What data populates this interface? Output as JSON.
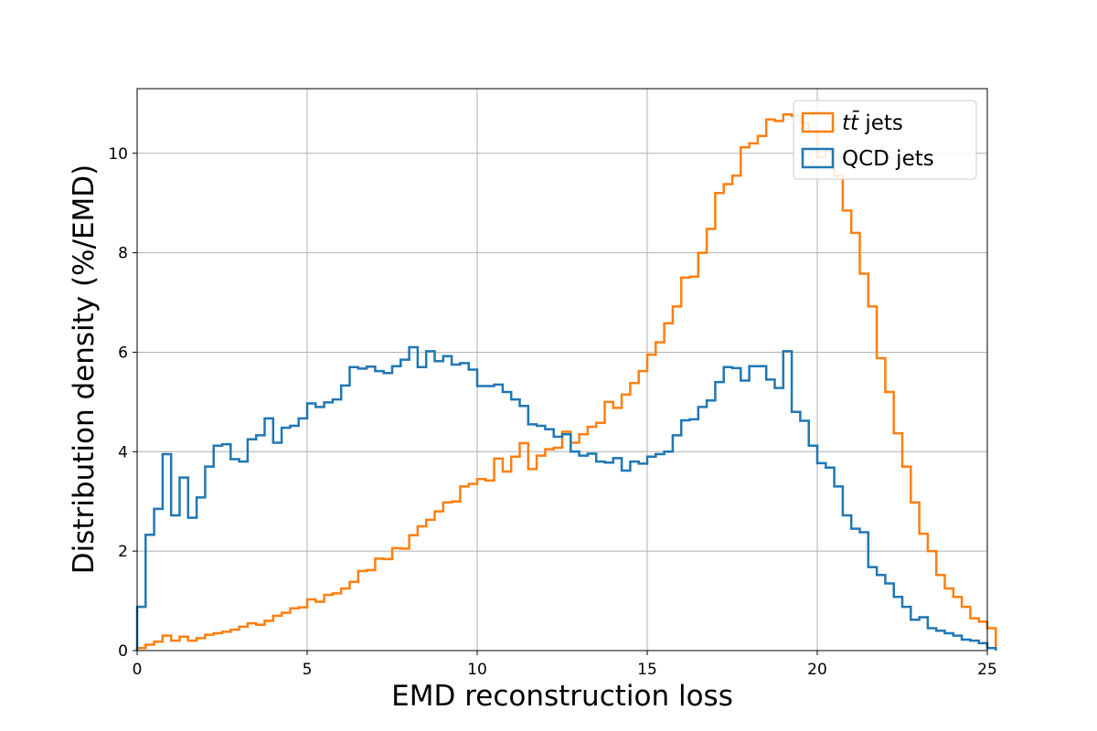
{
  "chart_data": {
    "type": "histogram-step",
    "title": "",
    "xlabel": "EMD reconstruction loss",
    "ylabel": "Distribution density (%/EMD)",
    "xlim": [
      0,
      25
    ],
    "ylim": [
      0,
      11.3
    ],
    "xticks": [
      0,
      5,
      10,
      15,
      20,
      25
    ],
    "yticks": [
      0,
      2,
      4,
      6,
      8,
      10
    ],
    "grid": true,
    "legend_position": "top-right",
    "bin_width": 0.25,
    "series": [
      {
        "name": "tt̄ jets",
        "legend_main": "tt̄",
        "legend_suffix": " jets",
        "color": "#ff7f0e",
        "values": [
          0.05,
          0.12,
          0.18,
          0.3,
          0.2,
          0.28,
          0.2,
          0.25,
          0.32,
          0.35,
          0.38,
          0.42,
          0.48,
          0.55,
          0.52,
          0.6,
          0.7,
          0.76,
          0.85,
          0.87,
          1.03,
          0.98,
          1.12,
          1.15,
          1.25,
          1.38,
          1.6,
          1.62,
          1.85,
          1.84,
          2.06,
          2.05,
          2.32,
          2.5,
          2.63,
          2.8,
          2.98,
          3.0,
          3.3,
          3.35,
          3.45,
          3.42,
          3.86,
          3.6,
          3.9,
          4.17,
          3.65,
          3.92,
          4.05,
          4.08,
          4.4,
          4.18,
          4.35,
          4.5,
          4.58,
          5.0,
          4.88,
          5.15,
          5.38,
          5.62,
          5.95,
          6.2,
          6.58,
          6.92,
          7.5,
          7.52,
          8.0,
          8.48,
          9.2,
          9.38,
          9.55,
          10.12,
          10.2,
          10.35,
          10.68,
          10.65,
          10.78,
          10.75,
          10.6,
          10.45,
          9.92,
          10.05,
          9.55,
          8.85,
          8.4,
          7.58,
          6.92,
          5.88,
          5.2,
          4.37,
          3.7,
          2.98,
          2.35,
          2.0,
          1.52,
          1.25,
          1.08,
          0.88,
          0.65,
          0.58,
          0.45
        ]
      },
      {
        "name": "QCD jets",
        "color": "#1f77b4",
        "values": [
          0.88,
          2.33,
          2.85,
          3.95,
          2.72,
          3.48,
          2.67,
          3.08,
          3.7,
          4.12,
          4.15,
          3.85,
          3.8,
          4.25,
          4.33,
          4.67,
          4.18,
          4.48,
          4.52,
          4.67,
          4.97,
          4.9,
          4.99,
          5.05,
          5.33,
          5.7,
          5.67,
          5.71,
          5.62,
          5.58,
          5.72,
          5.85,
          6.1,
          5.7,
          6.02,
          5.82,
          5.92,
          5.75,
          5.78,
          5.65,
          5.32,
          5.32,
          5.35,
          5.2,
          5.05,
          4.92,
          4.55,
          4.52,
          4.45,
          4.3,
          4.35,
          4.0,
          3.92,
          3.96,
          3.8,
          3.78,
          3.87,
          3.62,
          3.8,
          3.76,
          3.9,
          3.95,
          4.0,
          4.33,
          4.63,
          4.65,
          4.9,
          5.03,
          5.4,
          5.7,
          5.68,
          5.43,
          5.72,
          5.72,
          5.45,
          5.28,
          6.02,
          4.8,
          4.62,
          4.12,
          3.77,
          3.68,
          3.3,
          2.72,
          2.45,
          2.38,
          1.68,
          1.52,
          1.35,
          1.08,
          0.88,
          0.62,
          0.67,
          0.45,
          0.4,
          0.35,
          0.3,
          0.22,
          0.2,
          0.15,
          0.05
        ]
      }
    ]
  }
}
